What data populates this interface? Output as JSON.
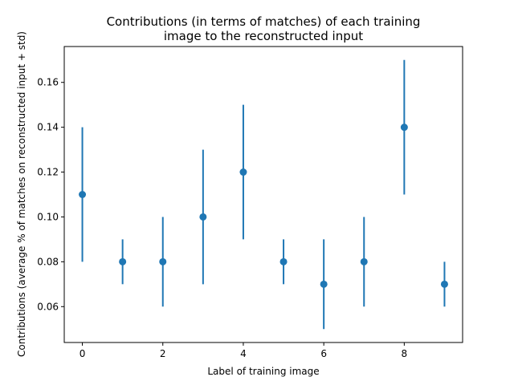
{
  "chart_data": {
    "type": "scatter",
    "title": "Contributions (in terms of matches) of each training\nimage to the reconstructed input",
    "xlabel": "Label of training image",
    "ylabel": "Contributions (average % of matches on reconstructed input + std)",
    "x": [
      0,
      1,
      2,
      3,
      4,
      5,
      6,
      7,
      8,
      9
    ],
    "series": [
      {
        "values": [
          0.11,
          0.08,
          0.08,
          0.1,
          0.12,
          0.08,
          0.07,
          0.08,
          0.14,
          0.07
        ],
        "std": [
          0.03,
          0.01,
          0.02,
          0.03,
          0.03,
          0.01,
          0.02,
          0.02,
          0.03,
          0.01
        ]
      }
    ],
    "xticks": [
      0,
      2,
      4,
      6,
      8
    ],
    "yticks": [
      0.06,
      0.08,
      0.1,
      0.12,
      0.14,
      0.16
    ],
    "ytick_labels": [
      "0.06",
      "0.08",
      "0.10",
      "0.12",
      "0.14",
      "0.16"
    ],
    "xlim": [
      -0.45,
      9.45
    ],
    "ylim": [
      0.044,
      0.176
    ],
    "grid": false,
    "marker_color": "#1f77b4"
  }
}
